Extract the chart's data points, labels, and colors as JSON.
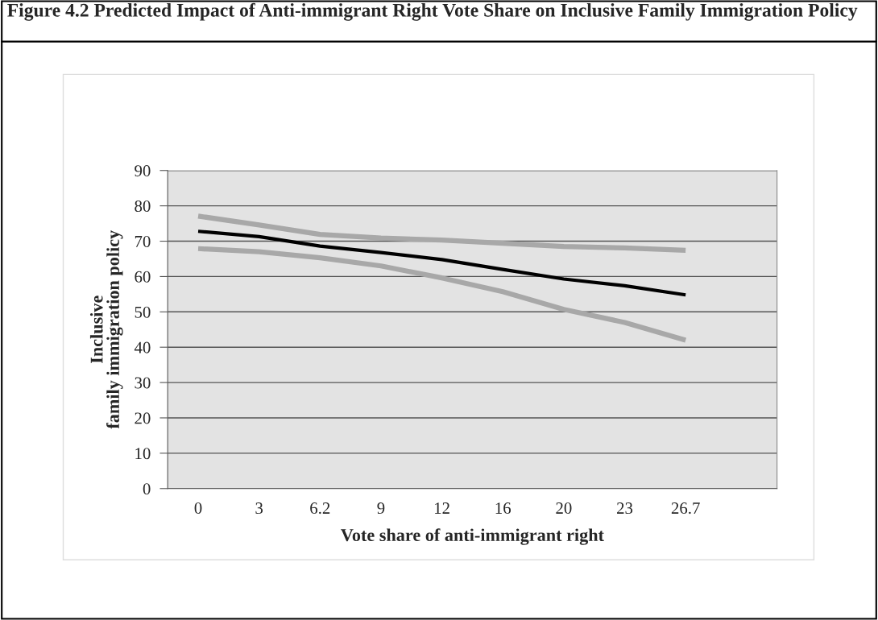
{
  "chart_data": {
    "type": "line",
    "title": "Figure 4.2 Predicted Impact of Anti-immigrant Right Vote Share on Inclusive Family Immigration Policy",
    "xlabel": "Vote share of anti-immigrant right",
    "ylabel": "Inclusive\nfamily immigration policy",
    "categories": [
      "0",
      "3",
      "6.2",
      "9",
      "12",
      "16",
      "20",
      "23",
      "26.7",
      null
    ],
    "series": [
      {
        "color": "#a8a8a8",
        "values": [
          77.1,
          74.6,
          71.9,
          70.9,
          70.3,
          69.4,
          68.5,
          68.1,
          67.4,
          null
        ]
      },
      {
        "color": "#a8a8a8",
        "values": [
          67.9,
          67.0,
          65.3,
          63.0,
          59.6,
          55.7,
          50.7,
          47.0,
          42.0,
          null
        ]
      },
      {
        "color": "#000000",
        "values": [
          72.8,
          71.3,
          68.6,
          66.8,
          64.8,
          62.0,
          59.3,
          57.4,
          54.8,
          null
        ]
      }
    ],
    "ylim": [
      0,
      90
    ],
    "yticks": [
      0,
      10,
      20,
      30,
      40,
      50,
      60,
      70,
      80,
      90
    ],
    "grid": "y",
    "legend": false,
    "marker": "none",
    "line_style": "solid"
  }
}
